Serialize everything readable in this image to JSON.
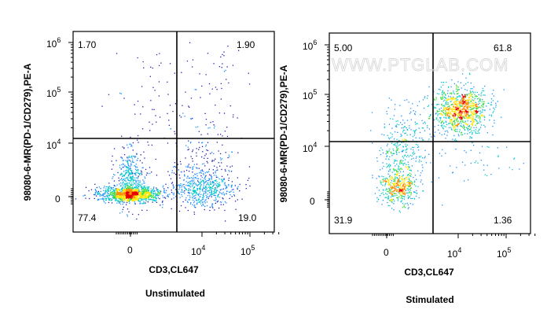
{
  "watermark": "WWW.PTGLAB.COM",
  "chart_data": [
    {
      "type": "scatter",
      "subtype": "flow-cytometry-density-dot-plot",
      "caption": "Unstimulated",
      "xlabel": "CD3,CL647",
      "ylabel": "98080-6-MR(PD-1/CD279),PE-A",
      "x_ticks": [
        {
          "label": "0"
        },
        {
          "label": "10",
          "sup": "4"
        },
        {
          "label": "10",
          "sup": "5"
        }
      ],
      "y_ticks": [
        {
          "label": "0"
        },
        {
          "label": "10",
          "sup": "4"
        },
        {
          "label": "10",
          "sup": "5"
        },
        {
          "label": "10",
          "sup": "6"
        }
      ],
      "quadrants": {
        "upper_left": "1.70",
        "upper_right": "1.90",
        "lower_left": "77.4",
        "lower_right": "19.0"
      },
      "colormap": [
        "#1e1eb4",
        "#1e90ff",
        "#00c8c8",
        "#3cdc3c",
        "#ffe600",
        "#ff8c00",
        "#e60000"
      ]
    },
    {
      "type": "scatter",
      "subtype": "flow-cytometry-density-dot-plot",
      "caption": "Stimulated",
      "xlabel": "CD3,CL647",
      "ylabel": "98080-6-MR(PD-1/CD279),PE-A",
      "x_ticks": [
        {
          "label": "0"
        },
        {
          "label": "10",
          "sup": "4"
        },
        {
          "label": "10",
          "sup": "5"
        }
      ],
      "y_ticks": [
        {
          "label": "0"
        },
        {
          "label": "10",
          "sup": "4"
        },
        {
          "label": "10",
          "sup": "5"
        },
        {
          "label": "10",
          "sup": "6"
        }
      ],
      "quadrants": {
        "upper_left": "5.00",
        "upper_right": "61.8",
        "lower_left": "31.9",
        "lower_right": "1.36"
      },
      "colormap": [
        "#1e1eb4",
        "#1e90ff",
        "#00c8c8",
        "#3cdc3c",
        "#ffe600",
        "#ff8c00",
        "#e60000"
      ]
    }
  ]
}
